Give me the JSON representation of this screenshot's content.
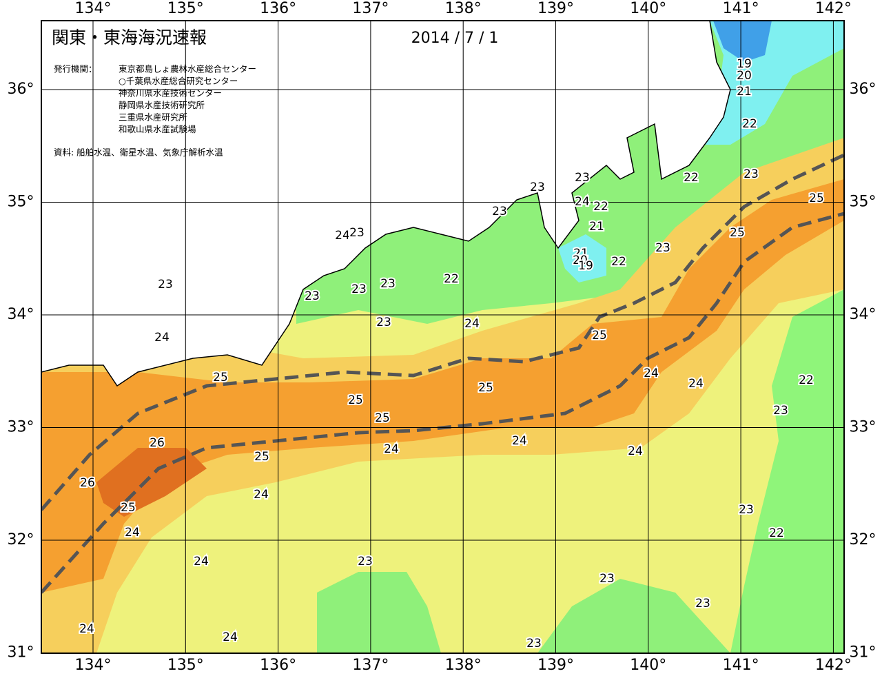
{
  "header": {
    "title": "関東・東海海況速報",
    "date": "2014 / 7 / 1",
    "agency_label": "発行機関：",
    "agencies": [
      "東京都島しょ農林水産総合センター",
      "○千葉県水産総合研究センター",
      "神奈川県水産技術センター",
      "静岡県水産技術研究所",
      "三重県水産研究所",
      "和歌山県水産試験場"
    ],
    "source": "資料: 船舶水温、衛星水温、気象庁解析水温"
  },
  "lon_labels": [
    "134°",
    "135°",
    "136°",
    "137°",
    "138°",
    "139°",
    "140°",
    "141°",
    "142°"
  ],
  "lat_labels": [
    "36°",
    "35°",
    "34°",
    "33°",
    "32°",
    "31°"
  ],
  "contour_labels": [
    19,
    20,
    21,
    22,
    23,
    22,
    25,
    25,
    23,
    23,
    24,
    22,
    21,
    21,
    20,
    19,
    22,
    23,
    23,
    24,
    23,
    23,
    23,
    23,
    23,
    22,
    23,
    24,
    25,
    24,
    24,
    22,
    24,
    25,
    25,
    25,
    25,
    23,
    26,
    24,
    24,
    24,
    25,
    26,
    24,
    25,
    23,
    24,
    22,
    24,
    23,
    23,
    23,
    24,
    24,
    23
  ]
}
